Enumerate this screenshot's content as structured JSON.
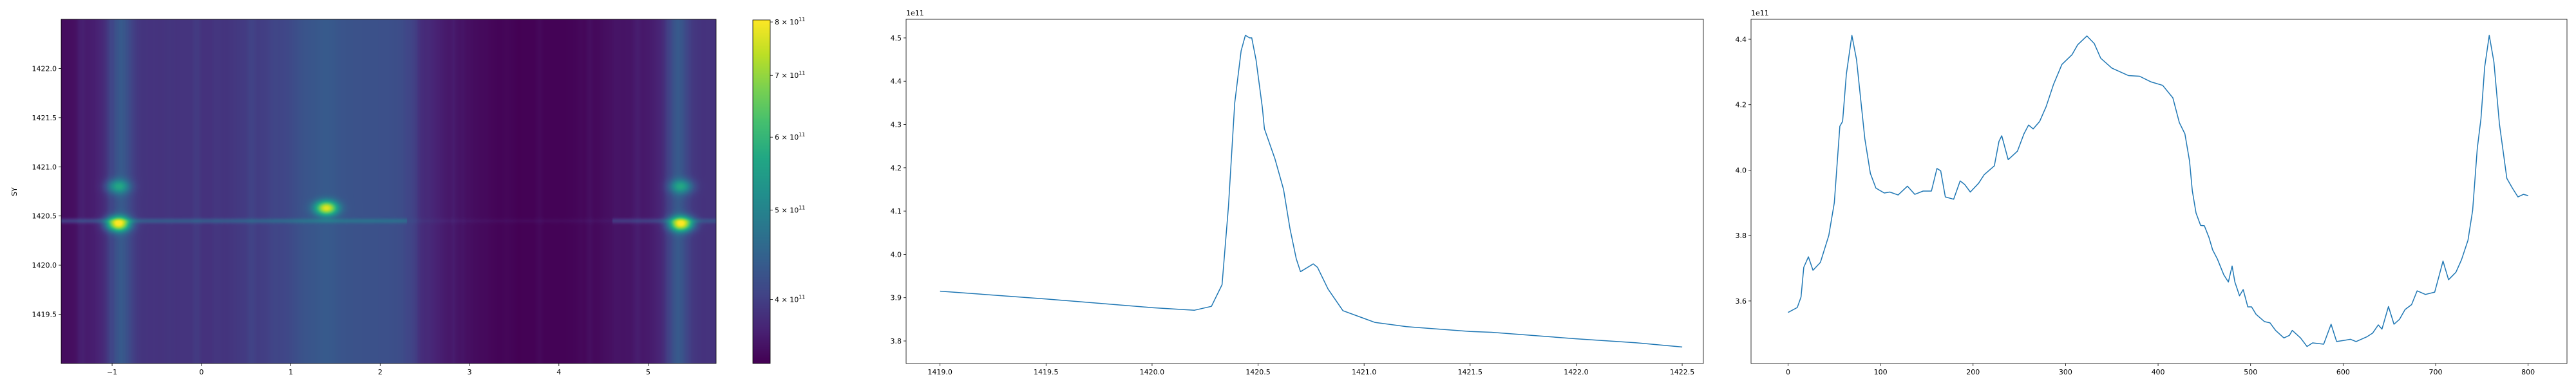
{
  "chart_data": [
    {
      "type": "heatmap",
      "ylabel": "SY",
      "xlabel": "",
      "xlim": [
        -1.57,
        5.76
      ],
      "ylim": [
        1419.0,
        1422.5
      ],
      "xticks": [
        -1,
        0,
        1,
        2,
        3,
        4,
        5
      ],
      "xtick_labels": [
        "−1",
        "0",
        "1",
        "2",
        "3",
        "4",
        "5"
      ],
      "yticks": [
        1419.5,
        1420.0,
        1420.5,
        1421.0,
        1421.5,
        1422.0
      ],
      "ytick_labels": [
        "1419.5",
        "1420.0",
        "1420.5",
        "1421.0",
        "1421.5",
        "1422.0"
      ],
      "colormap": "viridis",
      "colorbar": {
        "scale": "log",
        "range": [
          341000000000.0,
          804000000000.0
        ],
        "ticks": [
          400000000000.0,
          500000000000.0,
          600000000000.0,
          700000000000.0,
          800000000000.0
        ],
        "tick_labels": [
          {
            "mantissa": "4 × 10",
            "exp": "11"
          },
          {
            "mantissa": "5 × 10",
            "exp": "11"
          },
          {
            "mantissa": "6 × 10",
            "exp": "11"
          },
          {
            "mantissa": "7 × 10",
            "exp": "11"
          },
          {
            "mantissa": "8 × 10",
            "exp": "11"
          }
        ]
      },
      "bright_features": [
        {
          "x": -0.93,
          "y": 1420.42,
          "value": 800000000000.0
        },
        {
          "x": 5.37,
          "y": 1420.42,
          "value": 800000000000.0
        },
        {
          "x": 1.4,
          "y": 1420.58,
          "value": 760000000000.0
        },
        {
          "x": -0.93,
          "y": 1420.8,
          "value": 560000000000.0
        },
        {
          "x": 5.37,
          "y": 1420.8,
          "value": 560000000000.0
        }
      ],
      "emission_line_y": 1420.45
    },
    {
      "type": "line",
      "offset_text": "1e11",
      "xlim": [
        1418.84,
        1422.6
      ],
      "ylim": [
        3.748,
        4.543
      ],
      "xticks": [
        1419.0,
        1419.5,
        1420.0,
        1420.5,
        1421.0,
        1421.5,
        1422.0,
        1422.5
      ],
      "xtick_labels": [
        "1419.0",
        "1419.5",
        "1420.0",
        "1420.5",
        "1421.0",
        "1421.5",
        "1422.0",
        "1422.5"
      ],
      "yticks": [
        3.8,
        3.9,
        4.0,
        4.1,
        4.2,
        4.3,
        4.4,
        4.5
      ],
      "ytick_labels": [
        "3.8",
        "3.9",
        "4.0",
        "4.1",
        "4.2",
        "4.3",
        "4.4",
        "4.5"
      ],
      "color": "#1f77b4",
      "x": [
        1419.0,
        1419.5,
        1420.0,
        1420.2,
        1420.28,
        1420.33,
        1420.36,
        1420.39,
        1420.42,
        1420.44,
        1420.46,
        1420.47,
        1420.49,
        1420.52,
        1420.53,
        1420.58,
        1420.62,
        1420.65,
        1420.68,
        1420.7,
        1420.76,
        1420.78,
        1420.83,
        1420.9,
        1421.0,
        1421.05,
        1421.2,
        1421.5,
        1421.6,
        1422.0,
        1422.28,
        1422.5
      ],
      "y": [
        3.915,
        3.897,
        3.877,
        3.871,
        3.88,
        3.93,
        4.11,
        4.35,
        4.47,
        4.506,
        4.5,
        4.5,
        4.45,
        4.34,
        4.29,
        4.22,
        4.15,
        4.06,
        3.99,
        3.96,
        3.978,
        3.97,
        3.92,
        3.87,
        3.852,
        3.843,
        3.833,
        3.822,
        3.82,
        3.805,
        3.796,
        3.786
      ]
    },
    {
      "type": "line",
      "offset_text": "1e11",
      "xlim": [
        -40,
        842
      ],
      "ylim": [
        3.409,
        4.461
      ],
      "xticks": [
        0,
        100,
        200,
        300,
        400,
        500,
        600,
        700,
        800
      ],
      "xtick_labels": [
        "0",
        "100",
        "200",
        "300",
        "400",
        "500",
        "600",
        "700",
        "800"
      ],
      "yticks": [
        3.6,
        3.8,
        4.0,
        4.2,
        4.4
      ],
      "ytick_labels": [
        "3.6",
        "3.8",
        "4.0",
        "4.2",
        "4.4"
      ],
      "color": "#1f77b4",
      "x": [
        0,
        10,
        14,
        17,
        22,
        27,
        35,
        44,
        50,
        56,
        59,
        63,
        69,
        74,
        83,
        89,
        95,
        104,
        110,
        119,
        129,
        137,
        146,
        155,
        161,
        165,
        170,
        179,
        186,
        191,
        197,
        206,
        212,
        223,
        228,
        231,
        238,
        248,
        255,
        260,
        265,
        272,
        279,
        287,
        296,
        307,
        313,
        323,
        331,
        338,
        350,
        368,
        380,
        392,
        405,
        416,
        423,
        429,
        434,
        437,
        441,
        446,
        450,
        455,
        459,
        464,
        471,
        476,
        480,
        483,
        488,
        492,
        497,
        501,
        506,
        515,
        521,
        527,
        536,
        542,
        545,
        554,
        561,
        567,
        579,
        587,
        593,
        602,
        608,
        614,
        626,
        632,
        638,
        642,
        649,
        655,
        661,
        667,
        674,
        680,
        689,
        699,
        704,
        708,
        714,
        722,
        728,
        735,
        740,
        745,
        749,
        753,
        758,
        763,
        769,
        777,
        783,
        789,
        795,
        800
      ],
      "y": [
        3.565,
        3.58,
        3.612,
        3.703,
        3.735,
        3.694,
        3.718,
        3.8,
        3.9,
        4.134,
        4.149,
        4.293,
        4.412,
        4.338,
        4.096,
        3.99,
        3.945,
        3.93,
        3.933,
        3.924,
        3.951,
        3.926,
        3.936,
        3.936,
        4.005,
        3.998,
        3.918,
        3.911,
        3.967,
        3.956,
        3.933,
        3.96,
        3.986,
        4.013,
        4.088,
        4.105,
        4.032,
        4.058,
        4.111,
        4.138,
        4.126,
        4.149,
        4.194,
        4.262,
        4.323,
        4.353,
        4.383,
        4.41,
        4.387,
        4.342,
        4.312,
        4.289,
        4.287,
        4.27,
        4.259,
        4.221,
        4.145,
        4.111,
        4.028,
        3.937,
        3.869,
        3.831,
        3.83,
        3.794,
        3.756,
        3.729,
        3.68,
        3.658,
        3.707,
        3.658,
        3.616,
        3.635,
        3.582,
        3.582,
        3.559,
        3.537,
        3.533,
        3.51,
        3.487,
        3.495,
        3.51,
        3.487,
        3.461,
        3.472,
        3.468,
        3.529,
        3.476,
        3.48,
        3.483,
        3.476,
        3.491,
        3.502,
        3.527,
        3.514,
        3.583,
        3.529,
        3.544,
        3.574,
        3.589,
        3.631,
        3.62,
        3.627,
        3.68,
        3.722,
        3.665,
        3.688,
        3.726,
        3.786,
        3.877,
        4.066,
        4.157,
        4.315,
        4.412,
        4.331,
        4.141,
        3.975,
        3.945,
        3.918,
        3.926,
        3.922
      ]
    }
  ]
}
